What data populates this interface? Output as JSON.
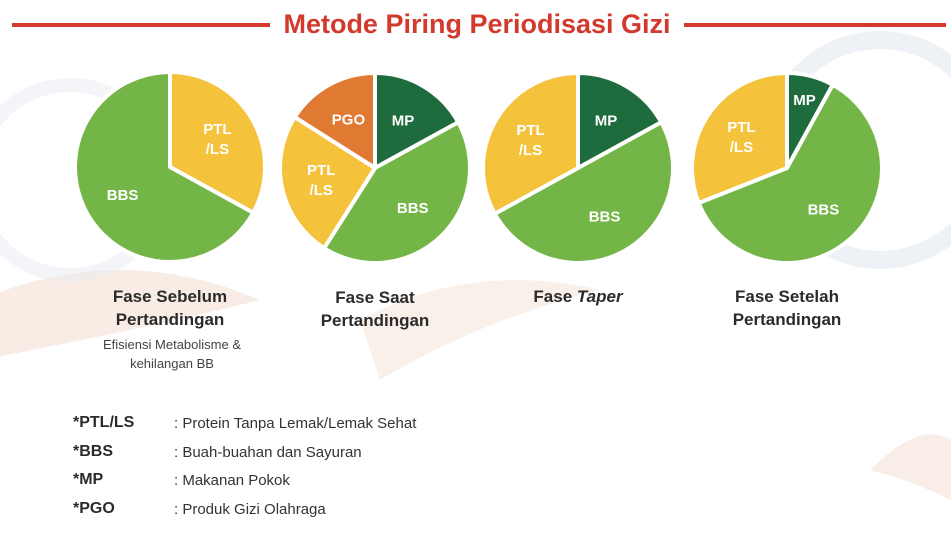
{
  "title": "Metode Piring Periodisasi Gizi",
  "colors": {
    "title": "#d23a2e",
    "BBS": "#73b546",
    "PTL/LS": "#f4c23b",
    "MP": "#1e6b3d",
    "PGO": "#e07a32"
  },
  "chart_data": [
    {
      "type": "pie",
      "title_lines": [
        "Fase Sebelum",
        "Pertandingan"
      ],
      "subtitle_lines": [
        "Efisiensi Metabolisme &",
        "kehilangan BB"
      ],
      "slices": [
        {
          "label": "PTL/LS",
          "display": [
            "PTL",
            "/LS"
          ],
          "value": 33
        },
        {
          "label": "BBS",
          "display": [
            "BBS"
          ],
          "value": 67
        }
      ]
    },
    {
      "type": "pie",
      "title_lines": [
        "Fase Saat",
        "Pertandingan"
      ],
      "subtitle_lines": [],
      "slices": [
        {
          "label": "MP",
          "display": [
            "MP"
          ],
          "value": 17
        },
        {
          "label": "BBS",
          "display": [
            "BBS"
          ],
          "value": 42
        },
        {
          "label": "PTL/LS",
          "display": [
            "PTL",
            "/LS"
          ],
          "value": 25
        },
        {
          "label": "PGO",
          "display": [
            "PGO"
          ],
          "value": 16
        }
      ]
    },
    {
      "type": "pie",
      "title_lines": [
        "Fase Taper"
      ],
      "title_italic_word": "Taper",
      "subtitle_lines": [],
      "slices": [
        {
          "label": "MP",
          "display": [
            "MP"
          ],
          "value": 17
        },
        {
          "label": "BBS",
          "display": [
            "BBS"
          ],
          "value": 50
        },
        {
          "label": "PTL/LS",
          "display": [
            "PTL",
            "/LS"
          ],
          "value": 33
        }
      ]
    },
    {
      "type": "pie",
      "title_lines": [
        "Fase Setelah",
        "Pertandingan"
      ],
      "subtitle_lines": [],
      "slices": [
        {
          "label": "MP",
          "display": [
            "MP"
          ],
          "value": 8
        },
        {
          "label": "BBS",
          "display": [
            "BBS"
          ],
          "value": 61
        },
        {
          "label": "PTL/LS",
          "display": [
            "PTL",
            "/LS"
          ],
          "value": 31
        }
      ]
    }
  ],
  "legend": [
    {
      "key": "*PTL/LS",
      "desc": ": Protein Tanpa Lemak/Lemak Sehat"
    },
    {
      "key": "*BBS",
      "desc": ": Buah-buahan dan Sayuran"
    },
    {
      "key": "*MP",
      "desc": ": Makanan Pokok"
    },
    {
      "key": "*PGO",
      "desc": ": Produk Gizi Olahraga"
    }
  ]
}
